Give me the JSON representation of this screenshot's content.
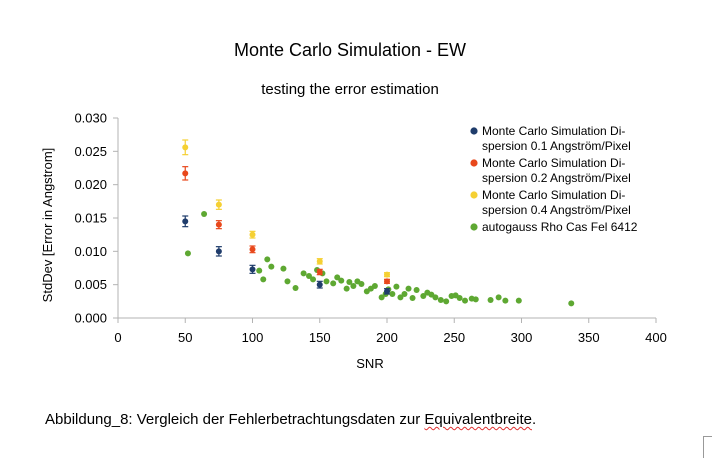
{
  "chart_data": {
    "type": "scatter",
    "title": "Monte Carlo Simulation - EW",
    "subtitle": "testing the error estimation",
    "xlabel": "SNR",
    "ylabel": "StdDev [Error in Angstrom]",
    "xlim": [
      0,
      400
    ],
    "ylim": [
      0,
      0.03
    ],
    "x_ticks": [
      0,
      50,
      100,
      150,
      200,
      250,
      300,
      350,
      400
    ],
    "y_ticks": [
      0,
      0.005,
      0.01,
      0.015,
      0.02,
      0.025,
      0.03
    ],
    "x_tick_labels": [
      "0",
      "50",
      "100",
      "150",
      "200",
      "250",
      "300",
      "350",
      "400"
    ],
    "y_tick_labels": [
      "0.000",
      "0.005",
      "0.010",
      "0.015",
      "0.020",
      "0.025",
      "0.030"
    ],
    "grid": false,
    "legend_position": "right",
    "series": [
      {
        "name": "Monte Carlo Simulation Dispersion 0.1 Angström/Pixel",
        "legend_lines": [
          "Monte Carlo Simulation Di-",
          "spersion 0.1 Angström/Pixel"
        ],
        "color": "#1f3c6b",
        "x": [
          50,
          75,
          100,
          150,
          200
        ],
        "y": [
          0.0145,
          0.01,
          0.0073,
          0.005,
          0.004
        ],
        "err": [
          0.0008,
          0.0007,
          0.0006,
          0.0005,
          0.0004
        ]
      },
      {
        "name": "Monte Carlo Simulation Dispersion 0.2 Angström/Pixel",
        "legend_lines": [
          "Monte Carlo Simulation Di-",
          "spersion 0.2 Angström/Pixel"
        ],
        "color": "#e8481c",
        "x": [
          50,
          75,
          100,
          150,
          200
        ],
        "y": [
          0.0217,
          0.014,
          0.0103,
          0.0069,
          0.0055
        ],
        "err": [
          0.001,
          0.0006,
          0.0005,
          0.0004,
          0.0003
        ]
      },
      {
        "name": "Monte Carlo Simulation Dispersion 0.4 Angström/Pixel",
        "legend_lines": [
          "Monte Carlo Simulation Di-",
          "spersion 0.4 Angström/Pixel"
        ],
        "color": "#f5d033",
        "x": [
          50,
          75,
          100,
          150,
          200
        ],
        "y": [
          0.0256,
          0.017,
          0.0125,
          0.0085,
          0.0065
        ],
        "err": [
          0.0011,
          0.0007,
          0.0005,
          0.0004,
          0.0003
        ]
      },
      {
        "name": "autogauss Rho Cas Fel 6412",
        "legend_lines": [
          "autogauss Rho Cas Fel 6412"
        ],
        "color": "#5ea832",
        "x": [
          52,
          64,
          105,
          108,
          111,
          114,
          123,
          126,
          132,
          138,
          142,
          145,
          148,
          152,
          155,
          160,
          163,
          166,
          170,
          172,
          175,
          178,
          181,
          185,
          188,
          191,
          196,
          199,
          201,
          204,
          207,
          210,
          213,
          216,
          219,
          222,
          227,
          230,
          233,
          236,
          240,
          244,
          248,
          251,
          254,
          258,
          263,
          266,
          277,
          283,
          288,
          298,
          337
        ],
        "y": [
          0.0097,
          0.0156,
          0.0071,
          0.0058,
          0.0088,
          0.0077,
          0.0074,
          0.0055,
          0.0045,
          0.0067,
          0.0063,
          0.0058,
          0.0072,
          0.0067,
          0.0055,
          0.0052,
          0.0061,
          0.0056,
          0.0044,
          0.0054,
          0.0048,
          0.0055,
          0.0051,
          0.004,
          0.0044,
          0.0048,
          0.0031,
          0.0036,
          0.0043,
          0.0036,
          0.0047,
          0.0031,
          0.0036,
          0.0044,
          0.003,
          0.0042,
          0.0033,
          0.0038,
          0.0035,
          0.0031,
          0.0027,
          0.0025,
          0.0033,
          0.0034,
          0.003,
          0.0026,
          0.0029,
          0.0028,
          0.0027,
          0.0031,
          0.0026,
          0.0026,
          0.0022
        ]
      }
    ]
  },
  "caption": {
    "prefix": "Abbildung_8: Vergleich der Fehlerbetrachtungsdaten zur ",
    "underlined": "Equivalentbreite",
    "suffix": "."
  }
}
